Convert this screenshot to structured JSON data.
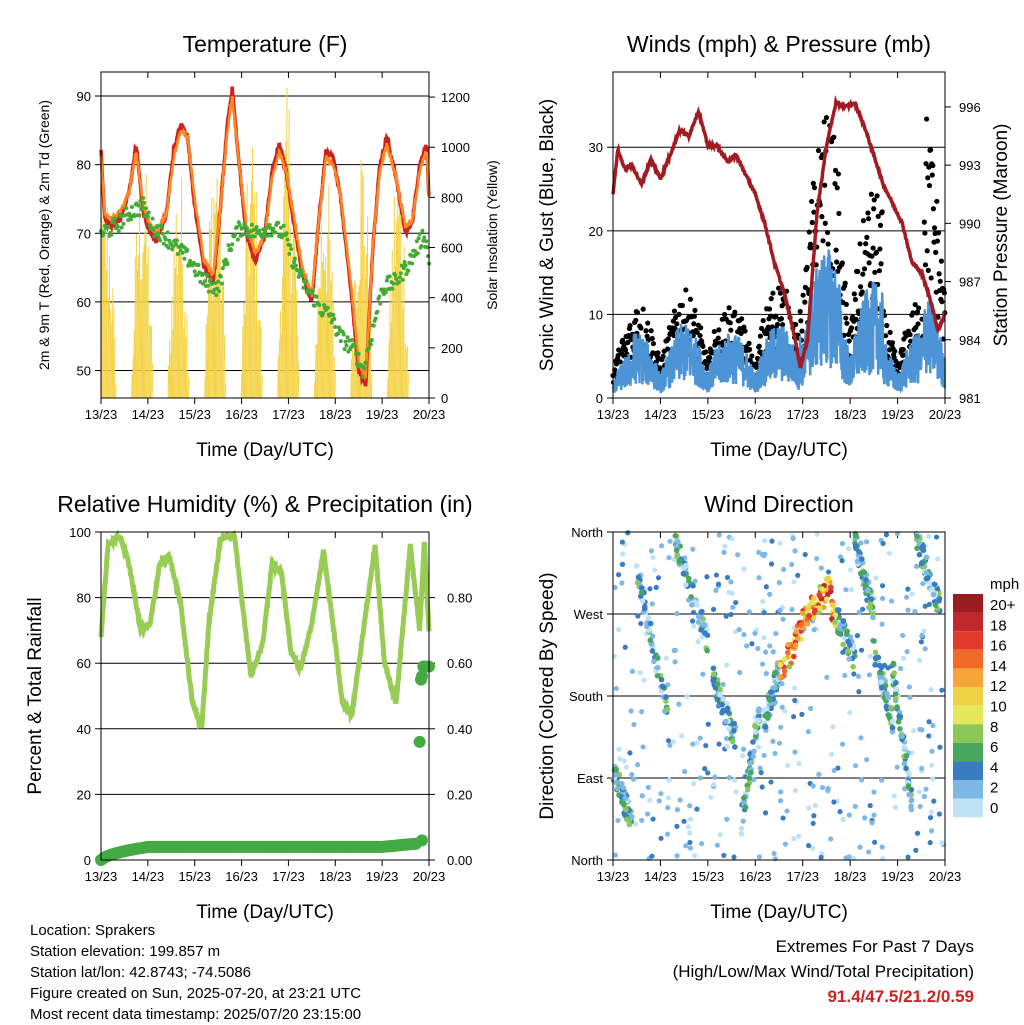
{
  "colors": {
    "temp_red": "#cc2222",
    "temp_orange": "#ff8822",
    "dewpoint_green": "#44aa33",
    "insolation_yellow": "#f5d242",
    "wind_blue": "#4d94d6",
    "gust_black": "#000000",
    "pressure_maroon": "#a01c22",
    "rh_green": "#99cc55",
    "precip_green": "#44aa44"
  },
  "extremes": {
    "heading": "Extremes For Past 7 Days",
    "subheading": "(High/Low/Max Wind/Total Precipitation)",
    "values": "91.4/47.5/21.2/0.59"
  },
  "info": {
    "location": "Location: Sprakers",
    "elevation": "Station elevation: 199.857 m",
    "latlon": "Station lat/lon: 42.8743; -74.5086",
    "created": "Figure created on Sun, 2025-07-20, at 23:21 UTC",
    "recent": "Most recent data timestamp: 2025/07/20 23:15:00"
  },
  "chart_data": [
    {
      "id": "temperature",
      "type": "line",
      "title": "Temperature (F)",
      "xlabel": "Time (Day/UTC)",
      "ylabel": "2m & 9m T (Red, Orange) & 2m Td (Green)",
      "ylabel_right": "Solar Insolation (Yellow)",
      "xticks": [
        "13/23",
        "14/23",
        "15/23",
        "16/23",
        "17/23",
        "18/23",
        "19/23",
        "20/23"
      ],
      "xlim": [
        0,
        7
      ],
      "ylim": [
        46,
        93.5
      ],
      "yticks": [
        50,
        60,
        70,
        80,
        90
      ],
      "ylim_right": [
        0,
        1300
      ],
      "yticks_right": [
        0,
        200,
        400,
        600,
        800,
        1000,
        1200
      ],
      "grid": "horizontal",
      "series": [
        {
          "key": "t2m",
          "color": "#cc2222",
          "x": [
            0,
            0.08,
            0.2,
            0.4,
            0.6,
            0.75,
            0.9,
            1.05,
            1.2,
            1.4,
            1.55,
            1.7,
            1.85,
            2.0,
            2.2,
            2.4,
            2.55,
            2.7,
            2.8,
            2.95,
            3.1,
            3.3,
            3.5,
            3.65,
            3.8,
            3.95,
            4.1,
            4.3,
            4.5,
            4.65,
            4.8,
            4.95,
            5.1,
            5.3,
            5.5,
            5.65,
            5.8,
            5.95,
            6.1,
            6.3,
            6.5,
            6.65,
            6.8,
            6.95,
            7.0
          ],
          "y": [
            82,
            72,
            71,
            72,
            76,
            83,
            73,
            70,
            69,
            73,
            82,
            86,
            84,
            74,
            65,
            63,
            74,
            86,
            91,
            80,
            70,
            66,
            70,
            79,
            83,
            79,
            72,
            64,
            60,
            72,
            82,
            81,
            76,
            64,
            50,
            48,
            68,
            80,
            84,
            78,
            70,
            72,
            80,
            83,
            75
          ]
        },
        {
          "key": "t9m",
          "color": "#ff8822",
          "x": [
            0,
            0.08,
            0.2,
            0.4,
            0.6,
            0.75,
            0.9,
            1.05,
            1.2,
            1.4,
            1.55,
            1.7,
            1.85,
            2.0,
            2.2,
            2.4,
            2.55,
            2.7,
            2.8,
            2.95,
            3.1,
            3.3,
            3.5,
            3.65,
            3.8,
            3.95,
            4.1,
            4.3,
            4.5,
            4.65,
            4.8,
            4.95,
            5.1,
            5.3,
            5.5,
            5.65,
            5.8,
            5.95,
            6.1,
            6.3,
            6.5,
            6.65,
            6.8,
            6.95,
            7.0
          ],
          "y": [
            81,
            73,
            72,
            73,
            76,
            82,
            74,
            71,
            70,
            73,
            81,
            85,
            84,
            75,
            66,
            64,
            74,
            85,
            90,
            80,
            71,
            67,
            70,
            78,
            82,
            79,
            73,
            65,
            61,
            72,
            81,
            80,
            76,
            65,
            51,
            49,
            68,
            79,
            83,
            78,
            71,
            72,
            79,
            82,
            75
          ]
        },
        {
          "key": "td2m",
          "color": "#44aa33",
          "x": [
            0,
            0.3,
            0.6,
            0.9,
            1.1,
            1.3,
            1.6,
            1.9,
            2.2,
            2.5,
            2.8,
            3.0,
            3.3,
            3.6,
            3.9,
            4.1,
            4.3,
            4.5,
            4.7,
            4.9,
            5.1,
            5.4,
            5.6,
            5.8,
            6.0,
            6.3,
            6.6,
            6.9,
            7.0
          ],
          "y": [
            70,
            71,
            73,
            74,
            71,
            70,
            68,
            66,
            63,
            62,
            69,
            71,
            70,
            71,
            70,
            66,
            63,
            61,
            59,
            58,
            55,
            53,
            50,
            56,
            62,
            63,
            66,
            70,
            66
          ]
        }
      ],
      "insolation_peaks": [
        900,
        1050,
        980,
        1150,
        1100,
        1270,
        1000,
        1120,
        1050
      ]
    },
    {
      "id": "winds",
      "type": "scatter",
      "title": "Winds (mph) & Pressure (mb)",
      "xlabel": "Time (Day/UTC)",
      "ylabel": "Sonic Wind & Gust (Blue, Black)",
      "ylabel_right": "Station Pressure (Maroon)",
      "xticks": [
        "13/23",
        "14/23",
        "15/23",
        "16/23",
        "17/23",
        "18/23",
        "19/23",
        "20/23"
      ],
      "xlim": [
        0,
        7
      ],
      "ylim": [
        0,
        39
      ],
      "yticks": [
        0,
        10,
        20,
        30
      ],
      "ylim_right": [
        981,
        997.8
      ],
      "yticks_right": [
        981,
        984,
        987,
        990,
        993,
        996
      ],
      "grid": "horizontal",
      "pressure": {
        "x": [
          0,
          0.1,
          0.25,
          0.4,
          0.6,
          0.8,
          1.0,
          1.2,
          1.4,
          1.6,
          1.8,
          2.0,
          2.2,
          2.4,
          2.6,
          2.8,
          3.0,
          3.2,
          3.4,
          3.6,
          3.8,
          3.95,
          4.1,
          4.3,
          4.5,
          4.7,
          4.9,
          5.1,
          5.3,
          5.5,
          5.7,
          5.9,
          6.1,
          6.3,
          6.5,
          6.7,
          6.85,
          6.95,
          7.0
        ],
        "y": [
          991.5,
          993.8,
          992.8,
          993.0,
          992.0,
          993.3,
          992.3,
          993.5,
          994.8,
          994.5,
          995.8,
          994.0,
          994.0,
          993.2,
          993.5,
          992.5,
          991.5,
          990.0,
          988.0,
          986.5,
          984.5,
          982.6,
          984.0,
          990.5,
          994.0,
          996.2,
          996.0,
          996.2,
          995.0,
          993.5,
          992.0,
          991.0,
          990.0,
          988.0,
          987.5,
          986.0,
          984.5,
          985.0,
          985.5
        ]
      },
      "wind_daily_peak": [
        6,
        8,
        9,
        8,
        9,
        18,
        14,
        8,
        14
      ],
      "gust_daily_peak": [
        10,
        12,
        13,
        11,
        14,
        34,
        25,
        12,
        36
      ]
    },
    {
      "id": "rh",
      "type": "line",
      "title": "Relative Humidity (%) & Precipitation (in)",
      "xlabel": "Time (Day/UTC)",
      "ylabel": "Percent & Total Rainfall",
      "xticks": [
        "13/23",
        "14/23",
        "15/23",
        "16/23",
        "17/23",
        "18/23",
        "19/23",
        "20/23"
      ],
      "xlim": [
        0,
        7
      ],
      "ylim": [
        0,
        100
      ],
      "yticks": [
        0,
        20,
        40,
        60,
        80,
        100
      ],
      "ylim_right": [
        0,
        1.0
      ],
      "yticks_right": [
        "0.00",
        "0.20",
        "0.40",
        "0.60",
        "0.80"
      ],
      "grid": "horizontal",
      "series": [
        {
          "key": "rh",
          "color": "#99cc55",
          "x": [
            0,
            0.15,
            0.4,
            0.6,
            0.85,
            1.05,
            1.25,
            1.45,
            1.7,
            1.95,
            2.15,
            2.3,
            2.55,
            2.85,
            3.0,
            3.2,
            3.45,
            3.65,
            3.85,
            4.05,
            4.25,
            4.5,
            4.75,
            4.95,
            5.15,
            5.35,
            5.6,
            5.85,
            6.05,
            6.3,
            6.45,
            6.6,
            6.8,
            6.9,
            7.0
          ],
          "y": [
            68,
            96,
            99,
            90,
            70,
            72,
            90,
            93,
            78,
            48,
            40,
            72,
            98,
            99,
            80,
            56,
            66,
            90,
            88,
            64,
            58,
            72,
            94,
            72,
            48,
            44,
            70,
            96,
            60,
            48,
            72,
            96,
            70,
            97,
            70
          ]
        },
        {
          "key": "precip",
          "color": "#44aa44",
          "x": [
            0,
            0.1,
            0.3,
            0.6,
            1.0,
            2.0,
            3.0,
            4.0,
            5.0,
            6.0,
            6.75,
            6.8,
            6.85,
            6.95,
            7.0
          ],
          "y": [
            0,
            0.01,
            0.02,
            0.03,
            0.04,
            0.04,
            0.04,
            0.04,
            0.04,
            0.04,
            0.05,
            0.36,
            0.55,
            0.59,
            0.59
          ]
        }
      ]
    },
    {
      "id": "direction",
      "type": "scatter",
      "title": "Wind Direction",
      "xlabel": "Time (Day/UTC)",
      "ylabel": "Direction (Colored By Speed)",
      "xticks": [
        "13/23",
        "14/23",
        "15/23",
        "16/23",
        "17/23",
        "18/23",
        "19/23",
        "20/23"
      ],
      "xlim": [
        0,
        7
      ],
      "ylim": [
        0,
        360
      ],
      "yticks": [
        "North",
        "East",
        "South",
        "West",
        "North"
      ],
      "grid": "horizontal",
      "legend": {
        "title": "mph",
        "labels": [
          "20+",
          "18",
          "16",
          "14",
          "12",
          "10",
          "8",
          "6",
          "4",
          "2",
          "0"
        ],
        "colors": [
          "#9b1b1e",
          "#c0282c",
          "#e23b2b",
          "#f06b2a",
          "#f6a33a",
          "#f0d247",
          "#e6e85b",
          "#8cc856",
          "#4aa65c",
          "#3a7cc0",
          "#7db8e6",
          "#bfe2f7"
        ],
        "placement": "right"
      },
      "dir_segments": [
        {
          "x": [
            0,
            0.4
          ],
          "y": [
            100,
            40
          ]
        },
        {
          "x": [
            0.5,
            1.2
          ],
          "y": [
            320,
            150
          ]
        },
        {
          "x": [
            1.3,
            2.0
          ],
          "y": [
            350,
            240
          ]
        },
        {
          "x": [
            2.1,
            2.6
          ],
          "y": [
            200,
            130
          ]
        },
        {
          "x": [
            2.7,
            3.1
          ],
          "y": [
            40,
            170
          ]
        },
        {
          "x": [
            3.2,
            3.5
          ],
          "y": [
            150,
            210
          ]
        },
        {
          "x": [
            3.5,
            4.1
          ],
          "y": [
            200,
            270
          ]
        },
        {
          "x": [
            4.1,
            4.6
          ],
          "y": [
            270,
            300
          ]
        },
        {
          "x": [
            4.6,
            5.1
          ],
          "y": [
            280,
            220
          ]
        },
        {
          "x": [
            5.1,
            5.5
          ],
          "y": [
            350,
            270
          ]
        },
        {
          "x": [
            5.5,
            5.9
          ],
          "y": [
            230,
            150
          ]
        },
        {
          "x": [
            5.9,
            6.3
          ],
          "y": [
            210,
            60
          ]
        },
        {
          "x": [
            6.4,
            6.9
          ],
          "y": [
            350,
            280
          ]
        }
      ]
    }
  ]
}
